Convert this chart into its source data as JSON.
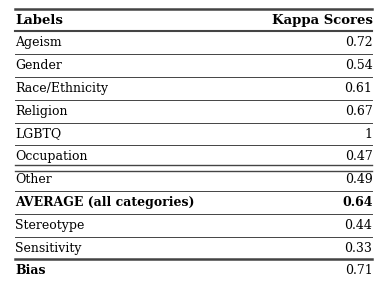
{
  "col1_header": "Labels",
  "col2_header": "Kappa Scores",
  "rows": [
    {
      "label": "Ageism",
      "value": "0.72",
      "label_bold": false,
      "value_bold": false
    },
    {
      "label": "Gender",
      "value": "0.54",
      "label_bold": false,
      "value_bold": false
    },
    {
      "label": "Race/Ethnicity",
      "value": "0.61",
      "label_bold": false,
      "value_bold": false
    },
    {
      "label": "Religion",
      "value": "0.67",
      "label_bold": false,
      "value_bold": false
    },
    {
      "label": "LGBTQ",
      "value": "1",
      "label_bold": false,
      "value_bold": false
    },
    {
      "label": "Occupation",
      "value": "0.47",
      "label_bold": false,
      "value_bold": false
    },
    {
      "label": "Other",
      "value": "0.49",
      "label_bold": false,
      "value_bold": false
    },
    {
      "label": "AVERAGE (all categories)",
      "value": "0.64",
      "label_bold": true,
      "value_bold": true
    },
    {
      "label": "Stereotype",
      "value": "0.44",
      "label_bold": false,
      "value_bold": false
    },
    {
      "label": "Sensitivity",
      "value": "0.33",
      "label_bold": false,
      "value_bold": false
    },
    {
      "label": "Bias",
      "value": "0.71",
      "label_bold": true,
      "value_bold": false
    }
  ],
  "double_line_before_row": 7,
  "bg_color": "#ffffff",
  "text_color": "#000000",
  "line_color": "#444444",
  "header_fontsize": 9.5,
  "row_fontsize": 9.0,
  "fig_width": 3.8,
  "fig_height": 2.88,
  "dpi": 100
}
